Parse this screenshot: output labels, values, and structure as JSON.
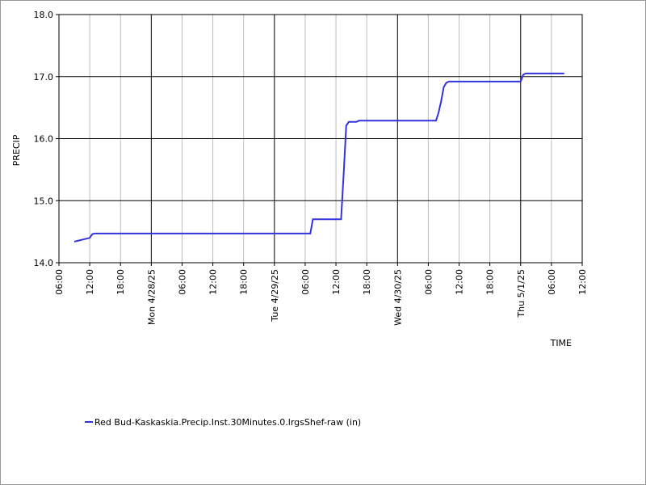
{
  "chart_data": {
    "type": "line",
    "ylabel": "PRECIP",
    "xlabel": "TIME",
    "x": [
      "2025-04-27T09:00",
      "2025-04-27T10:00",
      "2025-04-27T11:00",
      "2025-04-27T12:00",
      "2025-04-27T12:30",
      "2025-04-27T13:00",
      "2025-04-29T07:00",
      "2025-04-29T07:30",
      "2025-04-29T13:00",
      "2025-04-29T13:30",
      "2025-04-29T14:00",
      "2025-04-29T14:30",
      "2025-04-29T16:00",
      "2025-04-29T16:30",
      "2025-04-30T07:30",
      "2025-04-30T08:00",
      "2025-04-30T08:30",
      "2025-04-30T09:00",
      "2025-04-30T09:30",
      "2025-04-30T10:00",
      "2025-05-01T00:00",
      "2025-05-01T00:30",
      "2025-05-01T01:00",
      "2025-05-01T08:30"
    ],
    "series": [
      {
        "name": "Red Bud-Kaskaskia.Precip.Inst.30Minutes.0.lrgsShef-raw (in)",
        "color": "#3333dd",
        "values": [
          14.34,
          14.36,
          14.38,
          14.4,
          14.46,
          14.47,
          14.47,
          14.7,
          14.7,
          15.43,
          16.21,
          16.27,
          16.27,
          16.29,
          16.29,
          16.42,
          16.6,
          16.83,
          16.9,
          16.92,
          16.92,
          17.03,
          17.05,
          17.05
        ]
      }
    ],
    "xlim": [
      "2025-04-27T06:00",
      "2025-05-01T12:00"
    ],
    "xticks": [
      {
        "value": "2025-04-27T06:00",
        "label": "06:00"
      },
      {
        "value": "2025-04-27T12:00",
        "label": "12:00"
      },
      {
        "value": "2025-04-27T18:00",
        "label": "18:00"
      },
      {
        "value": "2025-04-28T00:00",
        "label": "Mon 4/28/25"
      },
      {
        "value": "2025-04-28T06:00",
        "label": "06:00"
      },
      {
        "value": "2025-04-28T12:00",
        "label": "12:00"
      },
      {
        "value": "2025-04-28T18:00",
        "label": "18:00"
      },
      {
        "value": "2025-04-29T00:00",
        "label": "Tue 4/29/25"
      },
      {
        "value": "2025-04-29T06:00",
        "label": "06:00"
      },
      {
        "value": "2025-04-29T12:00",
        "label": "12:00"
      },
      {
        "value": "2025-04-29T18:00",
        "label": "18:00"
      },
      {
        "value": "2025-04-30T00:00",
        "label": "Wed 4/30/25"
      },
      {
        "value": "2025-04-30T06:00",
        "label": "06:00"
      },
      {
        "value": "2025-04-30T12:00",
        "label": "12:00"
      },
      {
        "value": "2025-04-30T18:00",
        "label": "18:00"
      },
      {
        "value": "2025-05-01T00:00",
        "label": "Thu 5/1/25"
      },
      {
        "value": "2025-05-01T06:00",
        "label": "06:00"
      },
      {
        "value": "2025-05-01T12:00",
        "label": "12:00"
      }
    ],
    "ylim": [
      14,
      18
    ],
    "yticks": [
      {
        "value": 14,
        "label": "14.0"
      },
      {
        "value": 15,
        "label": "15.0"
      },
      {
        "value": 16,
        "label": "16.0"
      },
      {
        "value": 17,
        "label": "17.0"
      },
      {
        "value": 18,
        "label": "18.0"
      }
    ],
    "grid": true
  }
}
